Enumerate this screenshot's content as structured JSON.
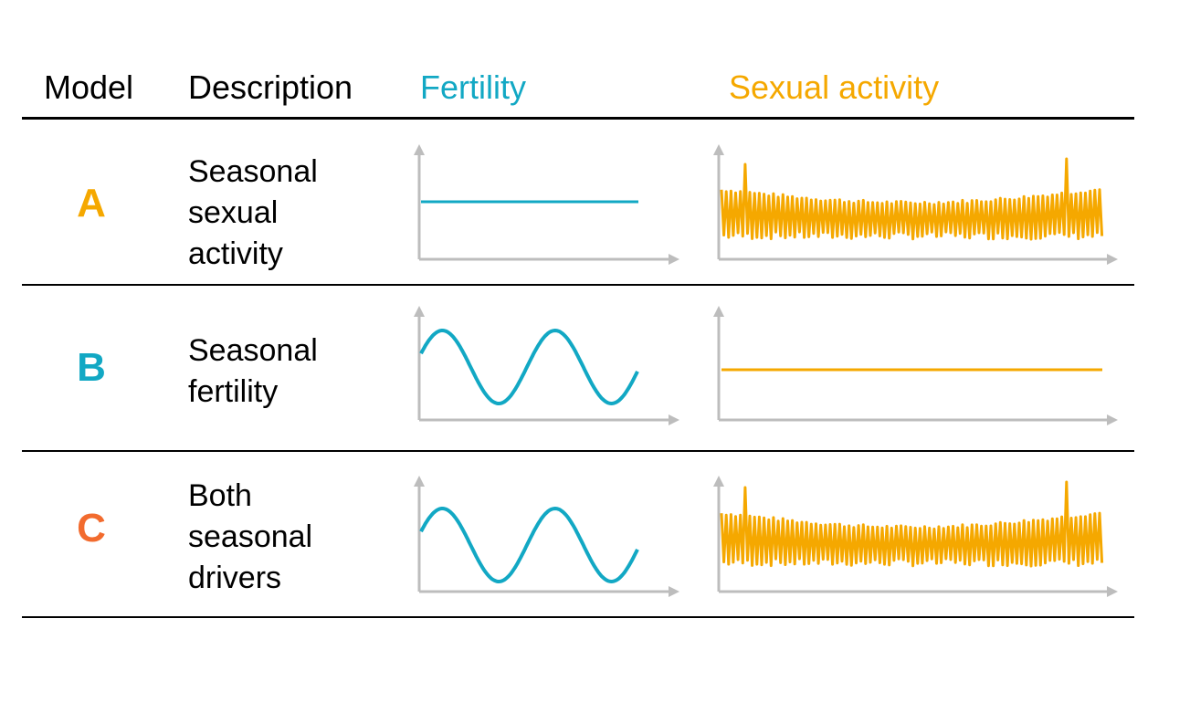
{
  "header": {
    "model": "Model",
    "description": "Description",
    "fertility": "Fertility",
    "sexual_activity": "Sexual activity"
  },
  "colors": {
    "fertility": "#12a8c4",
    "sexual_activity": "#f5a800",
    "model_a": "#f5a800",
    "model_b": "#12a8c4",
    "model_c": "#f26b2e",
    "axis": "#bdbdbd",
    "text": "#000000"
  },
  "rows": [
    {
      "letter": "A",
      "description": [
        "Seasonal",
        "sexual",
        "activity"
      ],
      "fertility_pattern": "constant",
      "sexual_activity_pattern": "seasonal"
    },
    {
      "letter": "B",
      "description": [
        "Seasonal",
        "fertility"
      ],
      "fertility_pattern": "seasonal",
      "sexual_activity_pattern": "constant"
    },
    {
      "letter": "C",
      "description": [
        "Both",
        "seasonal",
        "drivers"
      ],
      "fertility_pattern": "seasonal",
      "sexual_activity_pattern": "seasonal"
    }
  ]
}
